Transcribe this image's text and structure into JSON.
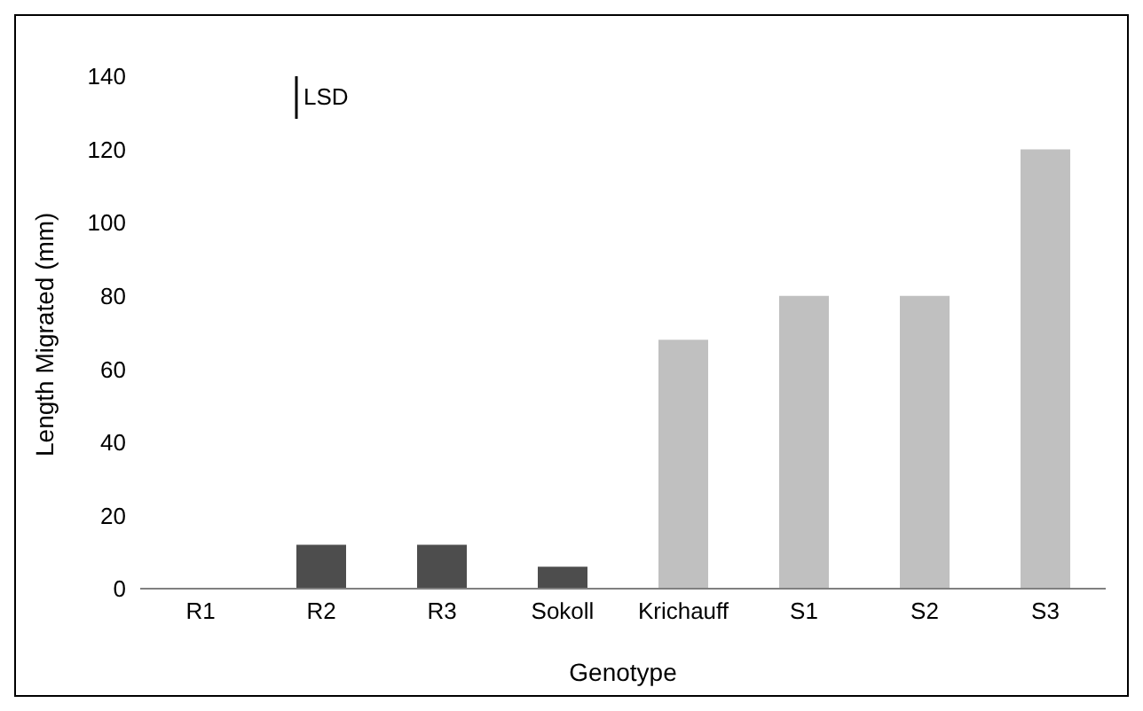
{
  "chart_data": {
    "type": "bar",
    "xlabel": "Genotype",
    "ylabel": "Length Migrated (mm)",
    "categories": [
      "R1",
      "R2",
      "R3",
      "Sokoll",
      "Krichauff",
      "S1",
      "S2",
      "S3"
    ],
    "values": [
      0,
      12,
      12,
      6,
      68,
      80,
      80,
      120
    ],
    "colors": [
      "#4d4d4d",
      "#4d4d4d",
      "#4d4d4d",
      "#4d4d4d",
      "#c0c0c0",
      "#c0c0c0",
      "#c0c0c0",
      "#c0c0c0"
    ],
    "ylim": [
      0,
      140
    ],
    "yticks": [
      0,
      20,
      40,
      60,
      80,
      100,
      120,
      140
    ],
    "annotations": [
      "LSD"
    ],
    "grid": false,
    "legend": false
  }
}
